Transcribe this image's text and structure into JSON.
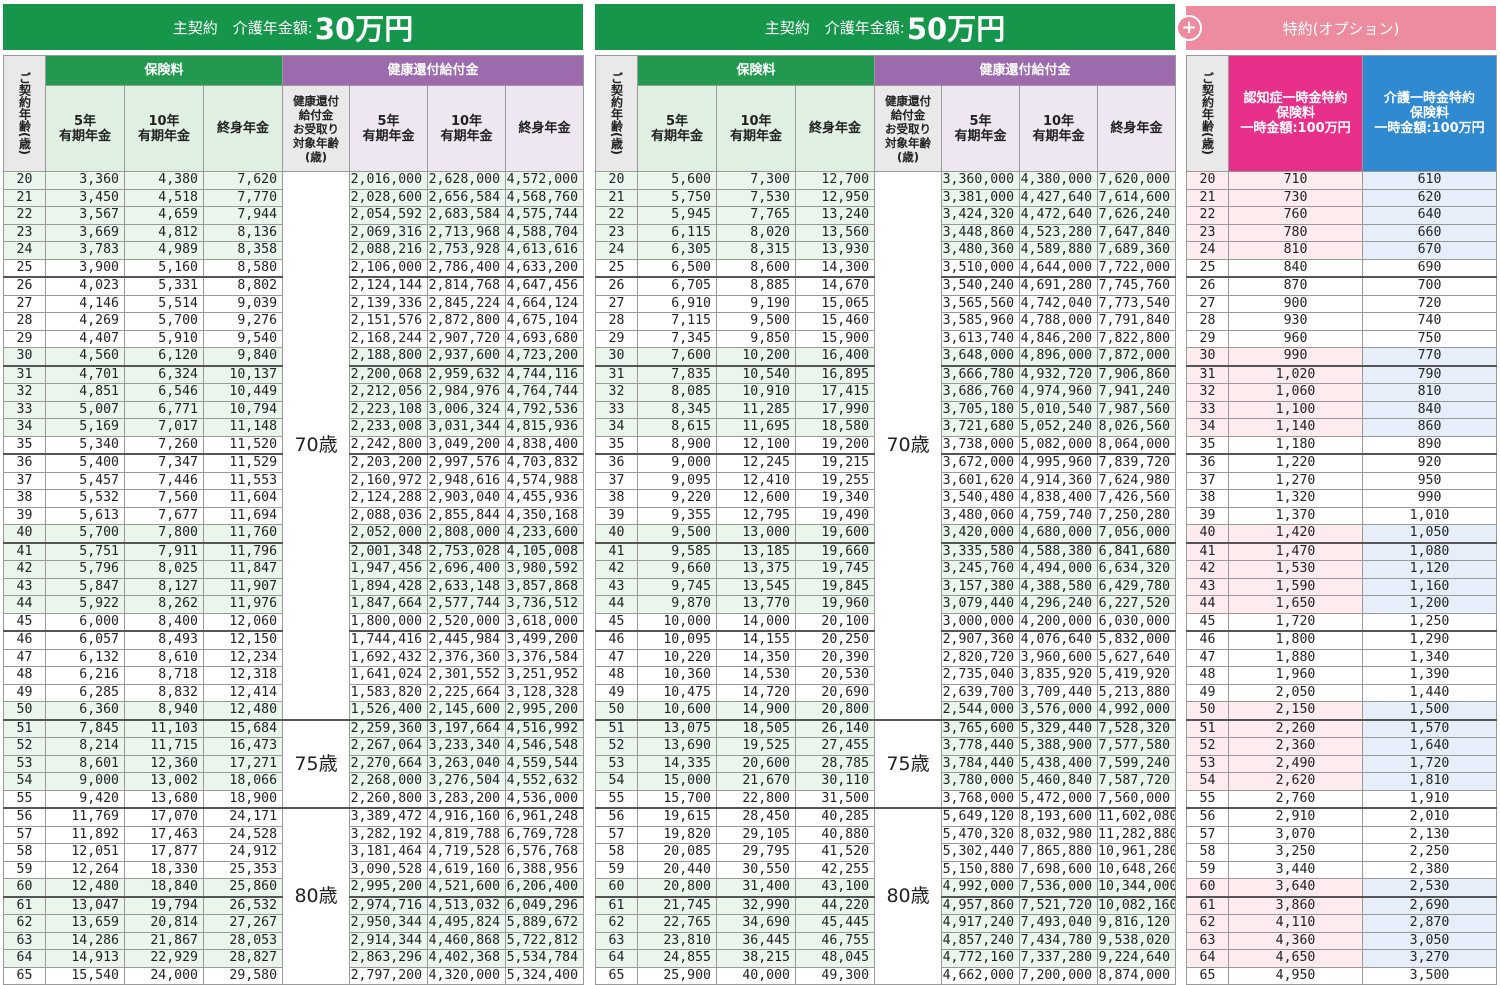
{
  "panels": [
    {
      "title_prefix": "主契約　介護年金額:",
      "title_amount": "30万円",
      "hdr": {
        "age": "ご契約年齢(歳)",
        "premium": "保険料",
        "refund": "健康還付給付金",
        "col5": "5年\n有期年金",
        "col10": "10年\n有期年金",
        "colLife": "終身年金",
        "target": "健康還付\n給付金\nお受取り\n対象年齢\n(歳)"
      },
      "target_ages": [
        "70歳",
        "75歳",
        "80歳"
      ],
      "p5": [
        "3,360",
        "3,450",
        "3,567",
        "3,669",
        "3,783",
        "3,900",
        "4,023",
        "4,146",
        "4,269",
        "4,407",
        "4,560",
        "4,701",
        "4,851",
        "5,007",
        "5,169",
        "5,340",
        "5,400",
        "5,457",
        "5,532",
        "5,613",
        "5,700",
        "5,751",
        "5,796",
        "5,847",
        "5,922",
        "6,000",
        "6,057",
        "6,132",
        "6,216",
        "6,285",
        "6,360",
        "7,845",
        "8,214",
        "8,601",
        "9,000",
        "9,420",
        "11,769",
        "11,892",
        "12,051",
        "12,264",
        "12,480",
        "13,047",
        "13,659",
        "14,286",
        "14,913",
        "15,540"
      ],
      "p10": [
        "4,380",
        "4,518",
        "4,659",
        "4,812",
        "4,989",
        "5,160",
        "5,331",
        "5,514",
        "5,700",
        "5,910",
        "6,120",
        "6,324",
        "6,546",
        "6,771",
        "7,017",
        "7,260",
        "7,347",
        "7,446",
        "7,560",
        "7,677",
        "7,800",
        "7,911",
        "8,025",
        "8,127",
        "8,262",
        "8,400",
        "8,493",
        "8,610",
        "8,718",
        "8,832",
        "8,940",
        "11,103",
        "11,715",
        "12,360",
        "13,002",
        "13,680",
        "17,070",
        "17,463",
        "17,877",
        "18,330",
        "18,840",
        "19,794",
        "20,814",
        "21,867",
        "22,929",
        "24,000"
      ],
      "pl": [
        "7,620",
        "7,770",
        "7,944",
        "8,136",
        "8,358",
        "8,580",
        "8,802",
        "9,039",
        "9,276",
        "9,540",
        "9,840",
        "10,137",
        "10,449",
        "10,794",
        "11,148",
        "11,520",
        "11,529",
        "11,553",
        "11,604",
        "11,694",
        "11,760",
        "11,796",
        "11,847",
        "11,907",
        "11,976",
        "12,060",
        "12,150",
        "12,234",
        "12,318",
        "12,414",
        "12,480",
        "15,684",
        "16,473",
        "17,271",
        "18,066",
        "18,900",
        "24,171",
        "24,528",
        "24,912",
        "25,353",
        "25,860",
        "26,532",
        "27,267",
        "28,053",
        "28,827",
        "29,580"
      ],
      "r5": [
        "2,016,000",
        "2,028,600",
        "2,054,592",
        "2,069,316",
        "2,088,216",
        "2,106,000",
        "2,124,144",
        "2,139,336",
        "2,151,576",
        "2,168,244",
        "2,188,800",
        "2,200,068",
        "2,212,056",
        "2,223,108",
        "2,233,008",
        "2,242,800",
        "2,203,200",
        "2,160,972",
        "2,124,288",
        "2,088,036",
        "2,052,000",
        "2,001,348",
        "1,947,456",
        "1,894,428",
        "1,847,664",
        "1,800,000",
        "1,744,416",
        "1,692,432",
        "1,641,024",
        "1,583,820",
        "1,526,400",
        "2,259,360",
        "2,267,064",
        "2,270,664",
        "2,268,000",
        "2,260,800",
        "3,389,472",
        "3,282,192",
        "3,181,464",
        "3,090,528",
        "2,995,200",
        "2,974,716",
        "2,950,344",
        "2,914,344",
        "2,863,296",
        "2,797,200"
      ],
      "r10": [
        "2,628,000",
        "2,656,584",
        "2,683,584",
        "2,713,968",
        "2,753,928",
        "2,786,400",
        "2,814,768",
        "2,845,224",
        "2,872,800",
        "2,907,720",
        "2,937,600",
        "2,959,632",
        "2,984,976",
        "3,006,324",
        "3,031,344",
        "3,049,200",
        "2,997,576",
        "2,948,616",
        "2,903,040",
        "2,855,844",
        "2,808,000",
        "2,753,028",
        "2,696,400",
        "2,633,148",
        "2,577,744",
        "2,520,000",
        "2,445,984",
        "2,376,360",
        "2,301,552",
        "2,225,664",
        "2,145,600",
        "3,197,664",
        "3,233,340",
        "3,263,040",
        "3,276,504",
        "3,283,200",
        "4,916,160",
        "4,819,788",
        "4,719,528",
        "4,619,160",
        "4,521,600",
        "4,513,032",
        "4,495,824",
        "4,460,868",
        "4,402,368",
        "4,320,000"
      ],
      "rl": [
        "4,572,000",
        "4,568,760",
        "4,575,744",
        "4,588,704",
        "4,613,616",
        "4,633,200",
        "4,647,456",
        "4,664,124",
        "4,675,104",
        "4,693,680",
        "4,723,200",
        "4,744,116",
        "4,764,744",
        "4,792,536",
        "4,815,936",
        "4,838,400",
        "4,703,832",
        "4,574,988",
        "4,455,936",
        "4,350,168",
        "4,233,600",
        "4,105,008",
        "3,980,592",
        "3,857,868",
        "3,736,512",
        "3,618,000",
        "3,499,200",
        "3,376,584",
        "3,251,952",
        "3,128,328",
        "2,995,200",
        "4,516,992",
        "4,546,548",
        "4,559,544",
        "4,552,632",
        "4,536,000",
        "6,961,248",
        "6,769,728",
        "6,576,768",
        "6,388,956",
        "6,206,400",
        "6,049,296",
        "5,889,672",
        "5,722,812",
        "5,534,784",
        "5,324,400"
      ]
    },
    {
      "title_prefix": "主契約　介護年金額:",
      "title_amount": "50万円",
      "hdr": {
        "age": "ご契約年齢(歳)",
        "premium": "保険料",
        "refund": "健康還付給付金",
        "col5": "5年\n有期年金",
        "col10": "10年\n有期年金",
        "colLife": "終身年金",
        "target": "健康還付\n給付金\nお受取り\n対象年齢\n(歳)"
      },
      "target_ages": [
        "70歳",
        "75歳",
        "80歳"
      ],
      "p5": [
        "5,600",
        "5,750",
        "5,945",
        "6,115",
        "6,305",
        "6,500",
        "6,705",
        "6,910",
        "7,115",
        "7,345",
        "7,600",
        "7,835",
        "8,085",
        "8,345",
        "8,615",
        "8,900",
        "9,000",
        "9,095",
        "9,220",
        "9,355",
        "9,500",
        "9,585",
        "9,660",
        "9,745",
        "9,870",
        "10,000",
        "10,095",
        "10,220",
        "10,360",
        "10,475",
        "10,600",
        "13,075",
        "13,690",
        "14,335",
        "15,000",
        "15,700",
        "19,615",
        "19,820",
        "20,085",
        "20,440",
        "20,800",
        "21,745",
        "22,765",
        "23,810",
        "24,855",
        "25,900"
      ],
      "p10": [
        "7,300",
        "7,530",
        "7,765",
        "8,020",
        "8,315",
        "8,600",
        "8,885",
        "9,190",
        "9,500",
        "9,850",
        "10,200",
        "10,540",
        "10,910",
        "11,285",
        "11,695",
        "12,100",
        "12,245",
        "12,410",
        "12,600",
        "12,795",
        "13,000",
        "13,185",
        "13,375",
        "13,545",
        "13,770",
        "14,000",
        "14,155",
        "14,350",
        "14,530",
        "14,720",
        "14,900",
        "18,505",
        "19,525",
        "20,600",
        "21,670",
        "22,800",
        "28,450",
        "29,105",
        "29,795",
        "30,550",
        "31,400",
        "32,990",
        "34,690",
        "36,445",
        "38,215",
        "40,000"
      ],
      "pl": [
        "12,700",
        "12,950",
        "13,240",
        "13,560",
        "13,930",
        "14,300",
        "14,670",
        "15,065",
        "15,460",
        "15,900",
        "16,400",
        "16,895",
        "17,415",
        "17,990",
        "18,580",
        "19,200",
        "19,215",
        "19,255",
        "19,340",
        "19,490",
        "19,600",
        "19,660",
        "19,745",
        "19,845",
        "19,960",
        "20,100",
        "20,250",
        "20,390",
        "20,530",
        "20,690",
        "20,800",
        "26,140",
        "27,455",
        "28,785",
        "30,110",
        "31,500",
        "40,285",
        "40,880",
        "41,520",
        "42,255",
        "43,100",
        "44,220",
        "45,445",
        "46,755",
        "48,045",
        "49,300"
      ],
      "r5": [
        "3,360,000",
        "3,381,000",
        "3,424,320",
        "3,448,860",
        "3,480,360",
        "3,510,000",
        "3,540,240",
        "3,565,560",
        "3,585,960",
        "3,613,740",
        "3,648,000",
        "3,666,780",
        "3,686,760",
        "3,705,180",
        "3,721,680",
        "3,738,000",
        "3,672,000",
        "3,601,620",
        "3,540,480",
        "3,480,060",
        "3,420,000",
        "3,335,580",
        "3,245,760",
        "3,157,380",
        "3,079,440",
        "3,000,000",
        "2,907,360",
        "2,820,720",
        "2,735,040",
        "2,639,700",
        "2,544,000",
        "3,765,600",
        "3,778,440",
        "3,784,440",
        "3,780,000",
        "3,768,000",
        "5,649,120",
        "5,470,320",
        "5,302,440",
        "5,150,880",
        "4,992,000",
        "4,957,860",
        "4,917,240",
        "4,857,240",
        "4,772,160",
        "4,662,000"
      ],
      "r10": [
        "4,380,000",
        "4,427,640",
        "4,472,640",
        "4,523,280",
        "4,589,880",
        "4,644,000",
        "4,691,280",
        "4,742,040",
        "4,788,000",
        "4,846,200",
        "4,896,000",
        "4,932,720",
        "4,974,960",
        "5,010,540",
        "5,052,240",
        "5,082,000",
        "4,995,960",
        "4,914,360",
        "4,838,400",
        "4,759,740",
        "4,680,000",
        "4,588,380",
        "4,494,000",
        "4,388,580",
        "4,296,240",
        "4,200,000",
        "4,076,640",
        "3,960,600",
        "3,835,920",
        "3,709,440",
        "3,576,000",
        "5,329,440",
        "5,388,900",
        "5,438,400",
        "5,460,840",
        "5,472,000",
        "8,193,600",
        "8,032,980",
        "7,865,880",
        "7,698,600",
        "7,536,000",
        "7,521,720",
        "7,493,040",
        "7,434,780",
        "7,337,280",
        "7,200,000"
      ],
      "rl": [
        "7,620,000",
        "7,614,600",
        "7,626,240",
        "7,647,840",
        "7,689,360",
        "7,722,000",
        "7,745,760",
        "7,773,540",
        "7,791,840",
        "7,822,800",
        "7,872,000",
        "7,906,860",
        "7,941,240",
        "7,987,560",
        "8,026,560",
        "8,064,000",
        "7,839,720",
        "7,624,980",
        "7,426,560",
        "7,250,280",
        "7,056,000",
        "6,841,680",
        "6,634,320",
        "6,429,780",
        "6,227,520",
        "6,030,000",
        "5,832,000",
        "5,627,640",
        "5,419,920",
        "5,213,880",
        "4,992,000",
        "7,528,320",
        "7,577,580",
        "7,599,240",
        "7,587,720",
        "7,560,000",
        "11,602,080",
        "11,282,880",
        "10,961,280",
        "10,648,260",
        "10,344,000",
        "10,082,160",
        "9,816,120",
        "9,538,020",
        "9,224,640",
        "8,874,000"
      ]
    }
  ],
  "option": {
    "title": "特約(オプション)",
    "plus": "+",
    "hdr_age": "ご契約年齢(歳)",
    "hdr_dementia": "認知症一時金特約\n保険料\n一時金額:100万円",
    "hdr_care": "介護一時金特約\n保険料\n一時金額:100万円",
    "dementia": [
      "710",
      "730",
      "760",
      "780",
      "810",
      "840",
      "870",
      "900",
      "930",
      "960",
      "990",
      "1,020",
      "1,060",
      "1,100",
      "1,140",
      "1,180",
      "1,220",
      "1,270",
      "1,320",
      "1,370",
      "1,420",
      "1,470",
      "1,530",
      "1,590",
      "1,650",
      "1,720",
      "1,800",
      "1,880",
      "1,960",
      "2,050",
      "2,150",
      "2,260",
      "2,360",
      "2,490",
      "2,620",
      "2,760",
      "2,910",
      "3,070",
      "3,250",
      "3,440",
      "3,640",
      "3,860",
      "4,110",
      "4,360",
      "4,650",
      "4,950"
    ],
    "care": [
      "610",
      "620",
      "640",
      "660",
      "670",
      "690",
      "700",
      "720",
      "740",
      "750",
      "770",
      "790",
      "810",
      "840",
      "860",
      "890",
      "920",
      "950",
      "990",
      "1,010",
      "1,050",
      "1,080",
      "1,120",
      "1,160",
      "1,200",
      "1,250",
      "1,290",
      "1,340",
      "1,390",
      "1,440",
      "1,500",
      "1,570",
      "1,640",
      "1,720",
      "1,810",
      "1,910",
      "2,010",
      "2,130",
      "2,250",
      "2,380",
      "2,530",
      "2,690",
      "2,870",
      "3,050",
      "3,270",
      "3,500"
    ]
  }
}
